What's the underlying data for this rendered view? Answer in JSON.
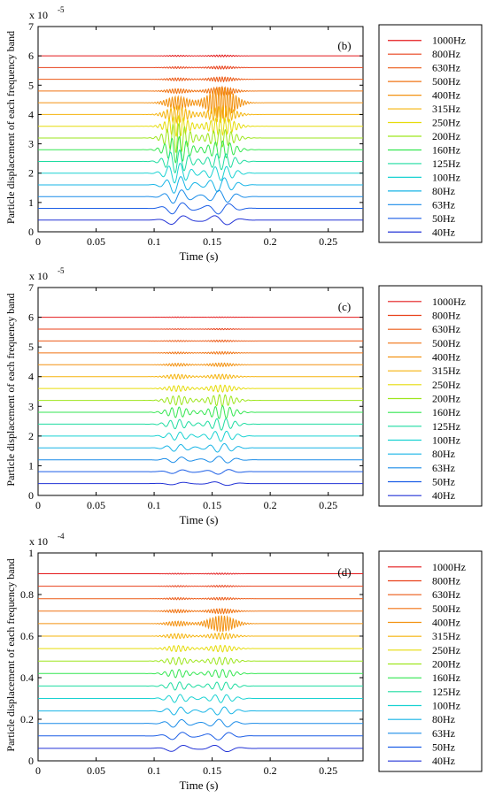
{
  "chart_data": [
    {
      "type": "line",
      "panel_label": "(b)",
      "xlabel": "Time (s)",
      "ylabel": "Particle displacement of each frequency band",
      "exponent_label": "x 10",
      "exponent_power": "-5",
      "xlim": [
        0,
        0.28
      ],
      "ylim": [
        0,
        7
      ],
      "x_ticks": [
        0,
        0.05,
        0.1,
        0.15,
        0.2,
        0.25
      ],
      "x_tick_labels": [
        "0",
        "0.05",
        "0.1",
        "0.15",
        "0.2",
        "0.25"
      ],
      "y_ticks": [
        0,
        1,
        2,
        3,
        4,
        5,
        6,
        7
      ],
      "y_tick_labels": [
        "0",
        "1",
        "2",
        "3",
        "4",
        "5",
        "6",
        "7"
      ],
      "legend_position": "right",
      "series": [
        {
          "name": "1000Hz",
          "color": "#e41a1c",
          "baseline": 6.0,
          "freq": 1000,
          "a1": 0.02,
          "a2": 0.03
        },
        {
          "name": "800Hz",
          "color": "#e8401a",
          "baseline": 5.6,
          "freq": 800,
          "a1": 0.03,
          "a2": 0.05
        },
        {
          "name": "630Hz",
          "color": "#ec5a17",
          "baseline": 5.2,
          "freq": 630,
          "a1": 0.05,
          "a2": 0.08
        },
        {
          "name": "500Hz",
          "color": "#f07414",
          "baseline": 4.8,
          "freq": 500,
          "a1": 0.08,
          "a2": 0.14
        },
        {
          "name": "400Hz",
          "color": "#f39212",
          "baseline": 4.4,
          "freq": 400,
          "a1": 0.22,
          "a2": 0.55
        },
        {
          "name": "315Hz",
          "color": "#f5b40e",
          "baseline": 4.0,
          "freq": 315,
          "a1": 0.28,
          "a2": 0.28
        },
        {
          "name": "250Hz",
          "color": "#e6dc0a",
          "baseline": 3.6,
          "freq": 250,
          "a1": 0.35,
          "a2": 0.3
        },
        {
          "name": "200Hz",
          "color": "#9ee61e",
          "baseline": 3.2,
          "freq": 200,
          "a1": 0.5,
          "a2": 0.3
        },
        {
          "name": "160Hz",
          "color": "#33e650",
          "baseline": 2.8,
          "freq": 160,
          "a1": 0.45,
          "a2": 0.3
        },
        {
          "name": "125Hz",
          "color": "#1edca0",
          "baseline": 2.4,
          "freq": 125,
          "a1": 0.4,
          "a2": 0.28
        },
        {
          "name": "100Hz",
          "color": "#19d2d2",
          "baseline": 2.0,
          "freq": 100,
          "a1": 0.35,
          "a2": 0.25
        },
        {
          "name": "80Hz",
          "color": "#17b4e6",
          "baseline": 1.6,
          "freq": 80,
          "a1": 0.3,
          "a2": 0.25
        },
        {
          "name": "63Hz",
          "color": "#1a8ce8",
          "baseline": 1.2,
          "freq": 63,
          "a1": 0.25,
          "a2": 0.22
        },
        {
          "name": "50Hz",
          "color": "#1c5ee6",
          "baseline": 0.8,
          "freq": 50,
          "a1": 0.22,
          "a2": 0.2
        },
        {
          "name": "40Hz",
          "color": "#2233d6",
          "baseline": 0.4,
          "freq": 40,
          "a1": 0.18,
          "a2": 0.18
        }
      ]
    },
    {
      "type": "line",
      "panel_label": "(c)",
      "xlabel": "Time (s)",
      "ylabel": "Particle displacement of each frequency band",
      "exponent_label": "x 10",
      "exponent_power": "-5",
      "xlim": [
        0,
        0.28
      ],
      "ylim": [
        0,
        7
      ],
      "x_ticks": [
        0,
        0.05,
        0.1,
        0.15,
        0.2,
        0.25
      ],
      "x_tick_labels": [
        "0",
        "0.05",
        "0.1",
        "0.15",
        "0.2",
        "0.25"
      ],
      "y_ticks": [
        0,
        1,
        2,
        3,
        4,
        5,
        6,
        7
      ],
      "y_tick_labels": [
        "0",
        "1",
        "2",
        "3",
        "4",
        "5",
        "6",
        "7"
      ],
      "legend_position": "right",
      "series": [
        {
          "name": "1000Hz",
          "color": "#e41a1c",
          "baseline": 6.0,
          "freq": 1000,
          "a1": 0.01,
          "a2": 0.01
        },
        {
          "name": "800Hz",
          "color": "#e8401a",
          "baseline": 5.6,
          "freq": 800,
          "a1": 0.01,
          "a2": 0.02
        },
        {
          "name": "630Hz",
          "color": "#ec5a17",
          "baseline": 5.2,
          "freq": 630,
          "a1": 0.02,
          "a2": 0.03
        },
        {
          "name": "500Hz",
          "color": "#f07414",
          "baseline": 4.8,
          "freq": 500,
          "a1": 0.03,
          "a2": 0.04
        },
        {
          "name": "400Hz",
          "color": "#f39212",
          "baseline": 4.4,
          "freq": 400,
          "a1": 0.05,
          "a2": 0.06
        },
        {
          "name": "315Hz",
          "color": "#f5b40e",
          "baseline": 4.0,
          "freq": 315,
          "a1": 0.08,
          "a2": 0.08
        },
        {
          "name": "250Hz",
          "color": "#e6dc0a",
          "baseline": 3.6,
          "freq": 250,
          "a1": 0.1,
          "a2": 0.12
        },
        {
          "name": "200Hz",
          "color": "#9ee61e",
          "baseline": 3.2,
          "freq": 200,
          "a1": 0.16,
          "a2": 0.2
        },
        {
          "name": "160Hz",
          "color": "#33e650",
          "baseline": 2.8,
          "freq": 160,
          "a1": 0.18,
          "a2": 0.22
        },
        {
          "name": "125Hz",
          "color": "#1edca0",
          "baseline": 2.4,
          "freq": 125,
          "a1": 0.16,
          "a2": 0.2
        },
        {
          "name": "100Hz",
          "color": "#19d2d2",
          "baseline": 2.0,
          "freq": 100,
          "a1": 0.14,
          "a2": 0.18
        },
        {
          "name": "80Hz",
          "color": "#17b4e6",
          "baseline": 1.6,
          "freq": 80,
          "a1": 0.12,
          "a2": 0.15
        },
        {
          "name": "63Hz",
          "color": "#1a8ce8",
          "baseline": 1.2,
          "freq": 63,
          "a1": 0.1,
          "a2": 0.12
        },
        {
          "name": "50Hz",
          "color": "#1c5ee6",
          "baseline": 0.8,
          "freq": 50,
          "a1": 0.07,
          "a2": 0.09
        },
        {
          "name": "40Hz",
          "color": "#2233d6",
          "baseline": 0.4,
          "freq": 40,
          "a1": 0.05,
          "a2": 0.07
        }
      ]
    },
    {
      "type": "line",
      "panel_label": "(d)",
      "xlabel": "Time (s)",
      "ylabel": "Particle displacement of each frequency band",
      "exponent_label": "x 10",
      "exponent_power": "-4",
      "xlim": [
        0,
        0.28
      ],
      "ylim": [
        0,
        1
      ],
      "x_ticks": [
        0,
        0.05,
        0.1,
        0.15,
        0.2,
        0.25
      ],
      "x_tick_labels": [
        "0",
        "0.05",
        "0.1",
        "0.15",
        "0.2",
        "0.25"
      ],
      "y_ticks": [
        0,
        0.2,
        0.4,
        0.6,
        0.8,
        1
      ],
      "y_tick_labels": [
        "0",
        "0.2",
        "0.4",
        "0.6",
        "0.8",
        "1"
      ],
      "legend_position": "right",
      "series": [
        {
          "name": "1000Hz",
          "color": "#e41a1c",
          "baseline": 0.9,
          "freq": 1000,
          "a1": 0.002,
          "a2": 0.003
        },
        {
          "name": "800Hz",
          "color": "#e8401a",
          "baseline": 0.84,
          "freq": 800,
          "a1": 0.003,
          "a2": 0.004
        },
        {
          "name": "630Hz",
          "color": "#ec5a17",
          "baseline": 0.78,
          "freq": 630,
          "a1": 0.005,
          "a2": 0.006
        },
        {
          "name": "500Hz",
          "color": "#f07414",
          "baseline": 0.72,
          "freq": 500,
          "a1": 0.008,
          "a2": 0.012
        },
        {
          "name": "400Hz",
          "color": "#f39212",
          "baseline": 0.66,
          "freq": 400,
          "a1": 0.012,
          "a2": 0.04
        },
        {
          "name": "315Hz",
          "color": "#f5b40e",
          "baseline": 0.6,
          "freq": 315,
          "a1": 0.012,
          "a2": 0.015
        },
        {
          "name": "250Hz",
          "color": "#e6dc0a",
          "baseline": 0.54,
          "freq": 250,
          "a1": 0.015,
          "a2": 0.016
        },
        {
          "name": "200Hz",
          "color": "#9ee61e",
          "baseline": 0.48,
          "freq": 200,
          "a1": 0.018,
          "a2": 0.018
        },
        {
          "name": "160Hz",
          "color": "#33e650",
          "baseline": 0.42,
          "freq": 160,
          "a1": 0.02,
          "a2": 0.02
        },
        {
          "name": "125Hz",
          "color": "#1edca0",
          "baseline": 0.36,
          "freq": 125,
          "a1": 0.02,
          "a2": 0.02
        },
        {
          "name": "100Hz",
          "color": "#19d2d2",
          "baseline": 0.3,
          "freq": 100,
          "a1": 0.02,
          "a2": 0.02
        },
        {
          "name": "80Hz",
          "color": "#17b4e6",
          "baseline": 0.24,
          "freq": 80,
          "a1": 0.02,
          "a2": 0.02
        },
        {
          "name": "63Hz",
          "color": "#1a8ce8",
          "baseline": 0.18,
          "freq": 63,
          "a1": 0.02,
          "a2": 0.02
        },
        {
          "name": "50Hz",
          "color": "#1c5ee6",
          "baseline": 0.12,
          "freq": 50,
          "a1": 0.02,
          "a2": 0.02
        },
        {
          "name": "40Hz",
          "color": "#2233d6",
          "baseline": 0.06,
          "freq": 40,
          "a1": 0.018,
          "a2": 0.018
        }
      ]
    }
  ]
}
